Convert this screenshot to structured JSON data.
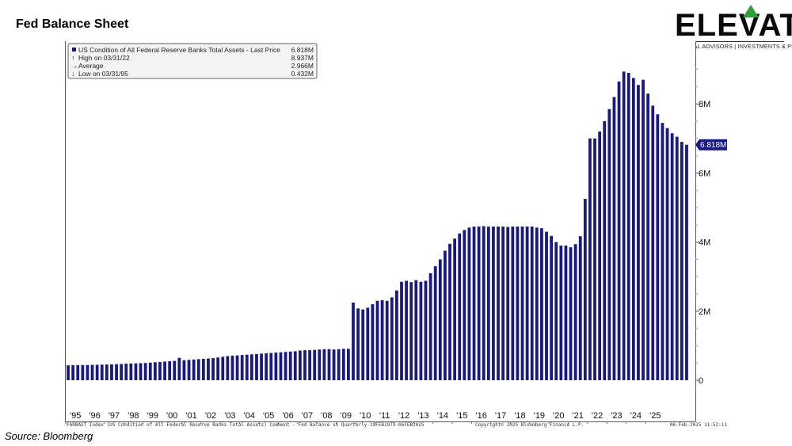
{
  "page": {
    "title": "Fed Balance Sheet",
    "source": "Source: Bloomberg"
  },
  "logo": {
    "word": "ELEVATE",
    "tagline": "CAPITAL ADVISORS | INVESTMENTS & PLANNING",
    "accent_color": "#2e9e3a"
  },
  "legend": {
    "rows": [
      {
        "label": "US Condition of All Federal Reserve Banks Total Assets - Last Price",
        "value": "6.818M",
        "marker": "square"
      },
      {
        "label": "High on 03/31/22",
        "value": "8.937M",
        "marker": "up-arrow"
      },
      {
        "label": "Average",
        "value": "2.966M",
        "marker": "dash-arrow"
      },
      {
        "label": "Low on 03/31/95",
        "value": "0.432M",
        "marker": "down-arrow"
      }
    ]
  },
  "last_price_tag": "6.818M",
  "footer": {
    "left": "FARBAST Index (US Condition of All Federal Reserve Banks Total Assets) Comment - Fed Balance sh  Quarterly 19FEB1975-06FEB2025",
    "center": "Copyright© 2025 Bloomberg Finance L.P.",
    "right": "06-Feb-2025 11:52:11"
  },
  "colors": {
    "bar": "#1a1a7e",
    "tag_bg": "#1a1a7e"
  },
  "chart_data": {
    "type": "bar",
    "title": "",
    "xlabel": "",
    "ylabel": "",
    "unit": "M",
    "ylim": [
      0,
      10
    ],
    "yticks": [
      0,
      2,
      4,
      6,
      8
    ],
    "ytick_labels": [
      "0",
      "2M",
      "4M",
      "6M",
      "8M"
    ],
    "xtick_labels": [
      "'95",
      "'96",
      "'97",
      "'98",
      "'99",
      "'00",
      "'01",
      "'02",
      "'03",
      "'04",
      "'05",
      "'06",
      "'07",
      "'08",
      "'09",
      "'10",
      "'11",
      "'12",
      "'13",
      "'14",
      "'15",
      "'16",
      "'17",
      "'18",
      "'19",
      "'20",
      "'21",
      "'22",
      "'23",
      "'24",
      "'25"
    ],
    "x_start": "1995-Q1",
    "frequency": "quarterly",
    "values": [
      0.432,
      0.435,
      0.438,
      0.44,
      0.442,
      0.445,
      0.448,
      0.452,
      0.455,
      0.46,
      0.465,
      0.47,
      0.48,
      0.485,
      0.49,
      0.495,
      0.5,
      0.51,
      0.52,
      0.53,
      0.54,
      0.55,
      0.56,
      0.65,
      0.58,
      0.59,
      0.6,
      0.61,
      0.62,
      0.63,
      0.64,
      0.66,
      0.68,
      0.7,
      0.71,
      0.72,
      0.73,
      0.74,
      0.75,
      0.76,
      0.77,
      0.78,
      0.79,
      0.8,
      0.81,
      0.82,
      0.83,
      0.84,
      0.86,
      0.87,
      0.87,
      0.88,
      0.89,
      0.9,
      0.9,
      0.89,
      0.9,
      0.91,
      0.91,
      2.25,
      2.08,
      2.05,
      2.1,
      2.2,
      2.3,
      2.32,
      2.3,
      2.4,
      2.6,
      2.85,
      2.88,
      2.84,
      2.9,
      2.85,
      2.88,
      3.1,
      3.3,
      3.5,
      3.75,
      3.95,
      4.1,
      4.25,
      4.35,
      4.42,
      4.45,
      4.45,
      4.46,
      4.45,
      4.45,
      4.45,
      4.45,
      4.44,
      4.45,
      4.45,
      4.45,
      4.45,
      4.45,
      4.42,
      4.4,
      4.3,
      4.18,
      4.0,
      3.9,
      3.9,
      3.85,
      3.94,
      4.17,
      5.25,
      7.0,
      7.0,
      7.2,
      7.5,
      7.85,
      8.2,
      8.65,
      8.937,
      8.9,
      8.75,
      8.55,
      8.7,
      8.3,
      7.95,
      7.7,
      7.45,
      7.3,
      7.15,
      7.05,
      6.9,
      6.818
    ]
  }
}
